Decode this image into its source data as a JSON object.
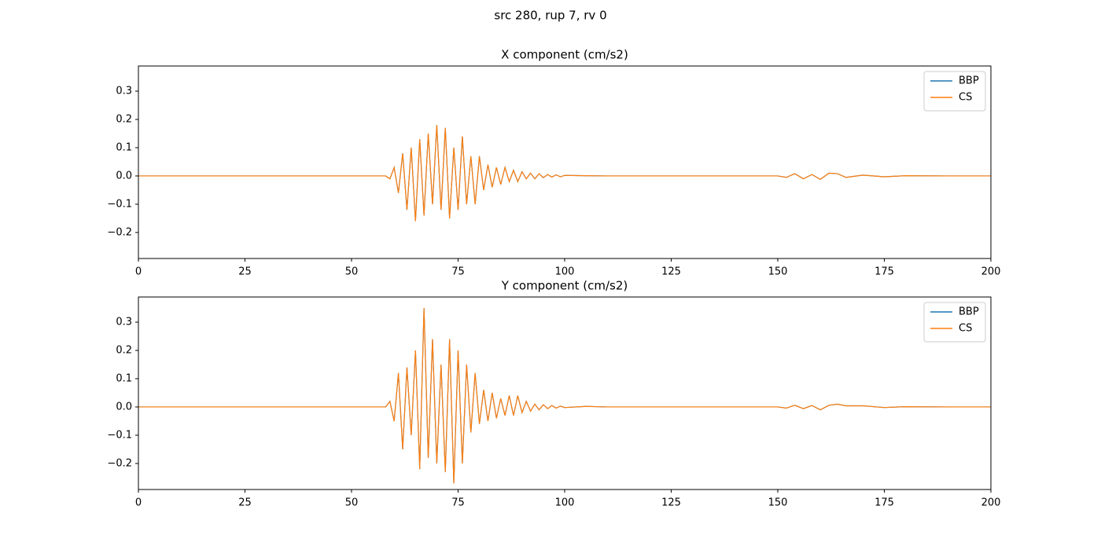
{
  "title": "src 280, rup 7, rv 0",
  "chart_data": [
    {
      "type": "line",
      "title": "X component (cm/s2)",
      "x": [
        0,
        58,
        59,
        60,
        61,
        62,
        63,
        64,
        65,
        66,
        67,
        68,
        69,
        70,
        71,
        72,
        73,
        74,
        75,
        76,
        77,
        78,
        79,
        80,
        81,
        82,
        83,
        84,
        85,
        86,
        87,
        88,
        89,
        90,
        91,
        92,
        93,
        94,
        95,
        96,
        97,
        98,
        99,
        100,
        105,
        110,
        120,
        150,
        152,
        154,
        156,
        158,
        160,
        162,
        164,
        166,
        170,
        175,
        180,
        190,
        200
      ],
      "series": [
        {
          "name": "BBP",
          "color": "#1f77b4",
          "values": [
            0,
            0,
            -0.01,
            0.03,
            -0.06,
            0.08,
            -0.12,
            0.1,
            -0.16,
            0.13,
            -0.14,
            0.15,
            -0.1,
            0.18,
            -0.12,
            0.17,
            -0.15,
            0.1,
            -0.12,
            0.14,
            -0.1,
            0.07,
            -0.1,
            0.07,
            -0.05,
            0.04,
            -0.04,
            0.03,
            -0.03,
            0.03,
            -0.02,
            0.02,
            -0.02,
            0.015,
            -0.01,
            0.01,
            -0.01,
            0.008,
            -0.006,
            0.005,
            -0.004,
            0.004,
            -0.003,
            0.002,
            0.001,
            0,
            0,
            0,
            -0.005,
            0.008,
            -0.01,
            0.005,
            -0.012,
            0.01,
            0.008,
            -0.005,
            0.003,
            -0.003,
            0.001,
            0,
            0
          ]
        },
        {
          "name": "CS",
          "color": "#ff7f0e",
          "values": [
            0,
            0,
            -0.01,
            0.03,
            -0.06,
            0.08,
            -0.12,
            0.1,
            -0.16,
            0.13,
            -0.14,
            0.15,
            -0.1,
            0.18,
            -0.12,
            0.17,
            -0.15,
            0.1,
            -0.12,
            0.14,
            -0.1,
            0.07,
            -0.1,
            0.07,
            -0.05,
            0.04,
            -0.04,
            0.03,
            -0.03,
            0.03,
            -0.02,
            0.02,
            -0.02,
            0.015,
            -0.01,
            0.01,
            -0.01,
            0.008,
            -0.006,
            0.005,
            -0.004,
            0.004,
            -0.003,
            0.002,
            0.001,
            0,
            0,
            0,
            -0.005,
            0.008,
            -0.01,
            0.005,
            -0.012,
            0.01,
            0.008,
            -0.005,
            0.003,
            -0.003,
            0.001,
            0,
            0
          ]
        }
      ],
      "xlim": [
        0,
        200
      ],
      "xticks": [
        0,
        25,
        50,
        75,
        100,
        125,
        150,
        175,
        200
      ],
      "ylim": [
        -0.292,
        0.389
      ],
      "yticks": [
        {
          "value": -0.2,
          "label": "−0.2"
        },
        {
          "value": -0.1,
          "label": "−0.1"
        },
        {
          "value": 0,
          "label": "0.0"
        },
        0.1,
        0.2,
        0.3
      ],
      "legend": "upper right"
    },
    {
      "type": "line",
      "title": "Y component (cm/s2)",
      "x": [
        0,
        58,
        59,
        60,
        61,
        62,
        63,
        64,
        65,
        66,
        67,
        68,
        69,
        70,
        71,
        72,
        73,
        74,
        75,
        76,
        77,
        78,
        79,
        80,
        81,
        82,
        83,
        84,
        85,
        86,
        87,
        88,
        89,
        90,
        91,
        92,
        93,
        94,
        95,
        96,
        97,
        98,
        99,
        100,
        105,
        110,
        120,
        150,
        152,
        154,
        156,
        158,
        160,
        162,
        164,
        166,
        170,
        175,
        180,
        190,
        200
      ],
      "series": [
        {
          "name": "BBP",
          "color": "#1f77b4",
          "values": [
            0,
            0,
            0.02,
            -0.05,
            0.12,
            -0.15,
            0.14,
            -0.1,
            0.2,
            -0.22,
            0.35,
            -0.18,
            0.24,
            -0.2,
            0.15,
            -0.23,
            0.24,
            -0.27,
            0.2,
            -0.2,
            0.15,
            -0.09,
            0.12,
            -0.06,
            0.06,
            -0.05,
            0.05,
            -0.04,
            0.03,
            -0.03,
            0.04,
            -0.03,
            0.04,
            -0.02,
            0.02,
            -0.015,
            0.01,
            -0.01,
            0.008,
            -0.006,
            0.005,
            -0.004,
            0.003,
            -0.002,
            0.002,
            0,
            0,
            0,
            -0.004,
            0.006,
            -0.006,
            0.005,
            -0.01,
            0.006,
            0.01,
            0.004,
            0.004,
            -0.002,
            0.001,
            0,
            0
          ]
        },
        {
          "name": "CS",
          "color": "#ff7f0e",
          "values": [
            0,
            0,
            0.02,
            -0.05,
            0.12,
            -0.15,
            0.14,
            -0.1,
            0.2,
            -0.22,
            0.35,
            -0.18,
            0.24,
            -0.2,
            0.15,
            -0.23,
            0.24,
            -0.27,
            0.2,
            -0.2,
            0.15,
            -0.09,
            0.12,
            -0.06,
            0.06,
            -0.05,
            0.05,
            -0.04,
            0.03,
            -0.03,
            0.04,
            -0.03,
            0.04,
            -0.02,
            0.02,
            -0.015,
            0.01,
            -0.01,
            0.008,
            -0.006,
            0.005,
            -0.004,
            0.003,
            -0.002,
            0.002,
            0,
            0,
            0,
            -0.004,
            0.006,
            -0.006,
            0.005,
            -0.01,
            0.006,
            0.01,
            0.004,
            0.004,
            -0.002,
            0.001,
            0,
            0
          ]
        }
      ],
      "xlim": [
        0,
        200
      ],
      "xticks": [
        0,
        25,
        50,
        75,
        100,
        125,
        150,
        175,
        200
      ],
      "ylim": [
        -0.292,
        0.389
      ],
      "yticks": [
        {
          "value": -0.2,
          "label": "−0.2"
        },
        {
          "value": -0.1,
          "label": "−0.1"
        },
        {
          "value": 0,
          "label": "0.0"
        },
        0.1,
        0.2,
        0.3
      ],
      "legend": "upper right"
    }
  ]
}
